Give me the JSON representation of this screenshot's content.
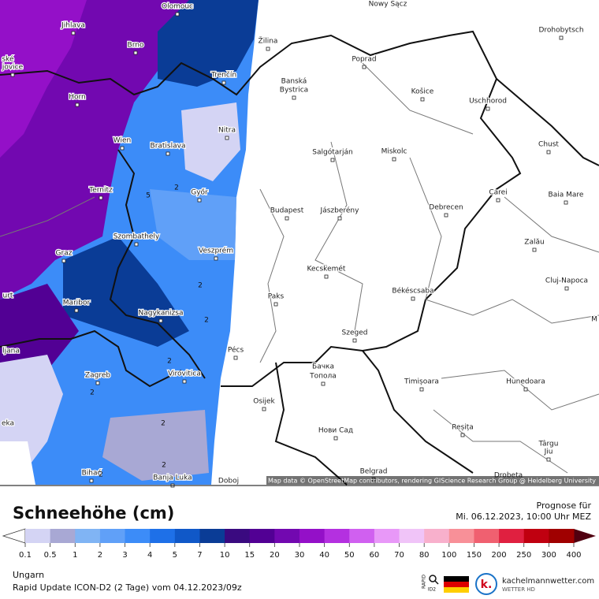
{
  "map": {
    "labels": [
      "Olomouc",
      "Nowy Sącz",
      "Jihlava",
      "Žilina",
      "Drohobytsch",
      "Brno",
      "Poprad",
      "ské",
      "jovice",
      "Trenčín",
      "Banská",
      "Bystrica",
      "Košice",
      "Uschhorod",
      "Horn",
      "Nitra",
      "Wien",
      "Bratislava",
      "Salgótarján",
      "Miskolc",
      "Chust",
      "Ternitz",
      "Győr",
      "Carei",
      "Baia Mare",
      "Budapest",
      "Jászberény",
      "Debrecen",
      "Szombathely",
      "Zalău",
      "Graz",
      "Veszprém",
      "Kecskemét",
      "Cluj-Napoca",
      "urt",
      "Paks",
      "Békéscsaba",
      "Maribor",
      "Nagykanizsa",
      "M",
      "Szeged",
      "ljana",
      "Pécs",
      "Бачка",
      "Топола",
      "Zagreb",
      "Virovitica",
      "Timișoara",
      "Hunedoara",
      "eka",
      "Osijek",
      "Нови Сад",
      "Reșița",
      "Târgu",
      "Jiu",
      "Bihać",
      "Banja Luka",
      "Doboj",
      "Belgrad",
      "Drobeta"
    ],
    "contour_labels": [
      "2",
      "2",
      "2",
      "2",
      "2",
      "2",
      "2",
      "2",
      "5"
    ],
    "attribution": "Map data © OpenStreetMap contributors, rendering GIScience Research Group @ Heidelberg University"
  },
  "legend": {
    "title": "Schneehöhe (cm)",
    "forecast_label": "Prognose für",
    "forecast_time": "Mi. 06.12.2023, 10:00 Uhr MEZ",
    "ticks": [
      "0.1",
      "0.5",
      "1",
      "2",
      "3",
      "4",
      "5",
      "7",
      "10",
      "15",
      "20",
      "30",
      "40",
      "50",
      "60",
      "70",
      "80",
      "100",
      "150",
      "200",
      "250",
      "300",
      "400"
    ],
    "colors": [
      "#d4d4f4",
      "#a8a8d4",
      "#80b4f4",
      "#60a0f8",
      "#3c8cf8",
      "#1e70e8",
      "#1058c8",
      "#0a3c96",
      "#3a0a80",
      "#520094",
      "#7208b0",
      "#9410c8",
      "#b430e0",
      "#d060f0",
      "#e898f8",
      "#f0c4f8",
      "#f8b0cc",
      "#f89098",
      "#f06070",
      "#e02040",
      "#c00010",
      "#a00000"
    ]
  },
  "footer": {
    "region": "Ungarn",
    "model": "Rapid Update ICON-D2 (2 Tage) vom 04.12.2023/09z",
    "badge_top": "RAPID",
    "badge_bottom": "ID2",
    "brand": "kachelmannwetter.com",
    "brand_sub": "WETTER HD"
  }
}
